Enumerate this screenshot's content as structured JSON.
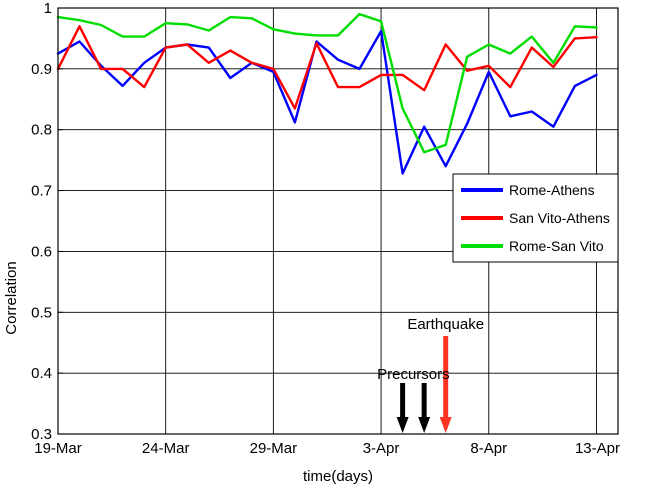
{
  "chart_data": {
    "type": "line",
    "xlabel": "time(days)",
    "ylabel": "Correlation",
    "x": [
      "19-Mar",
      "20-Mar",
      "21-Mar",
      "22-Mar",
      "23-Mar",
      "24-Mar",
      "25-Mar",
      "26-Mar",
      "27-Mar",
      "28-Mar",
      "29-Mar",
      "30-Mar",
      "31-Mar",
      "1-Apr",
      "2-Apr",
      "3-Apr",
      "4-Apr",
      "5-Apr",
      "6-Apr",
      "7-Apr",
      "8-Apr",
      "9-Apr",
      "10-Apr",
      "11-Apr",
      "12-Apr",
      "13-Apr"
    ],
    "xticks": [
      "19-Mar",
      "24-Mar",
      "29-Mar",
      "3-Apr",
      "8-Apr",
      "13-Apr"
    ],
    "xlim": [
      "19-Mar",
      "14-Apr"
    ],
    "yticks": [
      "0.3",
      "0.4",
      "0.5",
      "0.6",
      "0.7",
      "0.8",
      "0.9",
      "1"
    ],
    "ylim": [
      0.3,
      1.0
    ],
    "grid": true,
    "legend_position": "center-right",
    "series": [
      {
        "name": "Rome-Athens",
        "color": "#0000ff",
        "values": [
          0.925,
          0.945,
          0.905,
          0.872,
          0.91,
          0.935,
          0.94,
          0.935,
          0.885,
          0.91,
          0.895,
          0.812,
          0.945,
          0.915,
          0.9,
          0.962,
          0.728,
          0.805,
          0.74,
          0.81,
          0.895,
          0.822,
          0.83,
          0.805,
          0.872,
          0.89
        ]
      },
      {
        "name": "San Vito-Athens",
        "color": "#ff0000",
        "values": [
          0.9,
          0.97,
          0.9,
          0.9,
          0.87,
          0.935,
          0.94,
          0.91,
          0.93,
          0.91,
          0.9,
          0.835,
          0.942,
          0.87,
          0.87,
          0.89,
          0.89,
          0.865,
          0.94,
          0.897,
          0.905,
          0.87,
          0.935,
          0.903,
          0.95,
          0.952
        ]
      },
      {
        "name": "Rome-San Vito",
        "color": "#00dd00",
        "values": [
          0.985,
          0.98,
          0.972,
          0.953,
          0.953,
          0.975,
          0.973,
          0.963,
          0.985,
          0.983,
          0.965,
          0.958,
          0.955,
          0.955,
          0.99,
          0.978,
          0.835,
          0.763,
          0.775,
          0.92,
          0.94,
          0.925,
          0.953,
          0.91,
          0.97,
          0.968
        ]
      }
    ],
    "annotations": [
      {
        "label": "Earthquake",
        "color": "#ff3322",
        "arrows": [
          "6-Apr"
        ]
      },
      {
        "label": "Precursors",
        "color": "#000000",
        "arrows": [
          "4-Apr",
          "5-Apr"
        ]
      }
    ]
  }
}
